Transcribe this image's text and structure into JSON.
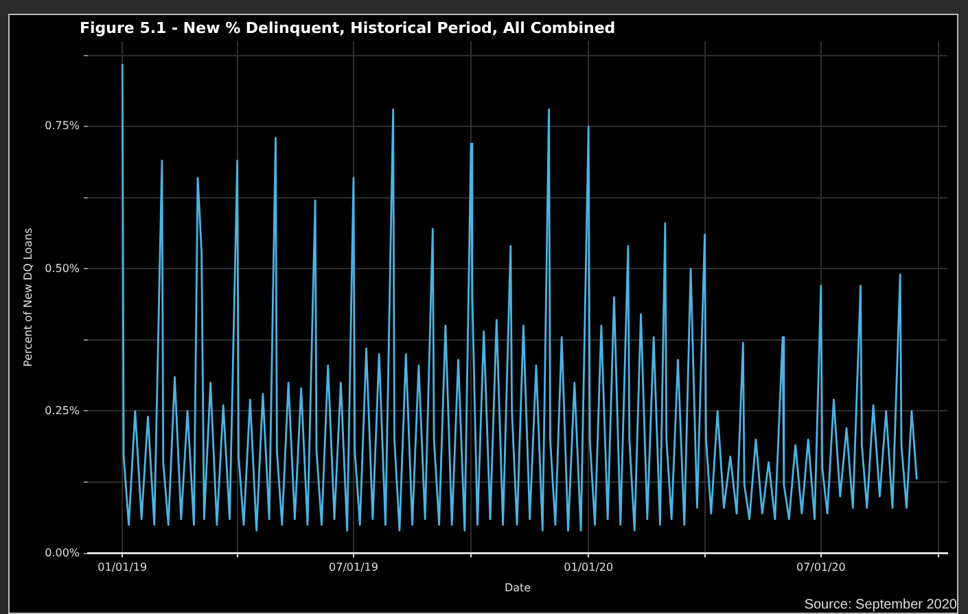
{
  "chart_data": {
    "type": "line",
    "title": "Figure 5.1 - New % Delinquent, Historical Period, All Combined",
    "xlabel": "Date",
    "ylabel": "Percent of New DQ Loans",
    "annotations": [
      "Source: September 2020"
    ],
    "x": [
      "2019-01-01",
      "2019-01-02",
      "2019-01-06",
      "2019-01-11",
      "2019-01-16",
      "2019-01-21",
      "2019-01-26",
      "2019-02-01",
      "2019-02-02",
      "2019-02-06",
      "2019-02-11",
      "2019-02-16",
      "2019-02-21",
      "2019-02-26",
      "2019-03-01",
      "2019-03-04",
      "2019-03-06",
      "2019-03-11",
      "2019-03-16",
      "2019-03-21",
      "2019-03-26",
      "2019-04-01",
      "2019-04-02",
      "2019-04-06",
      "2019-04-11",
      "2019-04-16",
      "2019-04-21",
      "2019-04-26",
      "2019-05-01",
      "2019-05-02",
      "2019-05-06",
      "2019-05-11",
      "2019-05-16",
      "2019-05-21",
      "2019-05-26",
      "2019-06-01",
      "2019-06-02",
      "2019-06-06",
      "2019-06-11",
      "2019-06-16",
      "2019-06-21",
      "2019-06-26",
      "2019-07-01",
      "2019-07-02",
      "2019-07-06",
      "2019-07-11",
      "2019-07-16",
      "2019-07-21",
      "2019-07-26",
      "2019-08-01",
      "2019-08-02",
      "2019-08-06",
      "2019-08-11",
      "2019-08-16",
      "2019-08-21",
      "2019-08-26",
      "2019-09-01",
      "2019-09-02",
      "2019-09-06",
      "2019-09-11",
      "2019-09-16",
      "2019-09-21",
      "2019-09-26",
      "2019-10-01",
      "2019-10-02",
      "2019-10-06",
      "2019-10-11",
      "2019-10-16",
      "2019-10-21",
      "2019-10-26",
      "2019-11-01",
      "2019-11-02",
      "2019-11-06",
      "2019-11-11",
      "2019-11-16",
      "2019-11-21",
      "2019-11-26",
      "2019-12-01",
      "2019-12-02",
      "2019-12-06",
      "2019-12-11",
      "2019-12-16",
      "2019-12-21",
      "2019-12-26",
      "2020-01-01",
      "2020-01-02",
      "2020-01-06",
      "2020-01-11",
      "2020-01-16",
      "2020-01-21",
      "2020-01-26",
      "2020-02-01",
      "2020-02-02",
      "2020-02-06",
      "2020-02-11",
      "2020-02-16",
      "2020-02-21",
      "2020-02-26",
      "2020-03-01",
      "2020-03-02",
      "2020-03-06",
      "2020-03-11",
      "2020-03-16",
      "2020-03-21",
      "2020-03-26",
      "2020-04-01",
      "2020-04-02",
      "2020-04-06",
      "2020-04-11",
      "2020-04-16",
      "2020-04-21",
      "2020-04-26",
      "2020-05-01",
      "2020-05-02",
      "2020-05-06",
      "2020-05-11",
      "2020-05-16",
      "2020-05-21",
      "2020-05-26",
      "2020-06-01",
      "2020-06-02",
      "2020-06-06",
      "2020-06-11",
      "2020-06-16",
      "2020-06-21",
      "2020-06-26",
      "2020-07-01",
      "2020-07-02",
      "2020-07-06",
      "2020-07-11",
      "2020-07-16",
      "2020-07-21",
      "2020-07-26",
      "2020-08-01",
      "2020-08-02",
      "2020-08-06",
      "2020-08-11",
      "2020-08-16",
      "2020-08-21",
      "2020-08-26",
      "2020-09-01",
      "2020-09-02",
      "2020-09-06",
      "2020-09-10",
      "2020-09-14"
    ],
    "series": [
      {
        "color": "#4db3e2",
        "values": [
          0.86,
          0.17,
          0.05,
          0.25,
          0.06,
          0.24,
          0.05,
          0.69,
          0.16,
          0.05,
          0.31,
          0.06,
          0.25,
          0.05,
          0.66,
          0.53,
          0.06,
          0.3,
          0.05,
          0.26,
          0.06,
          0.69,
          0.17,
          0.05,
          0.27,
          0.04,
          0.28,
          0.06,
          0.73,
          0.18,
          0.05,
          0.3,
          0.06,
          0.29,
          0.05,
          0.62,
          0.18,
          0.05,
          0.33,
          0.06,
          0.3,
          0.04,
          0.66,
          0.18,
          0.05,
          0.36,
          0.06,
          0.35,
          0.05,
          0.78,
          0.2,
          0.04,
          0.35,
          0.05,
          0.33,
          0.06,
          0.57,
          0.2,
          0.05,
          0.4,
          0.05,
          0.34,
          0.04,
          0.72,
          0.45,
          0.05,
          0.39,
          0.06,
          0.41,
          0.05,
          0.54,
          0.25,
          0.05,
          0.4,
          0.06,
          0.33,
          0.04,
          0.78,
          0.2,
          0.05,
          0.38,
          0.04,
          0.3,
          0.04,
          0.75,
          0.2,
          0.05,
          0.4,
          0.06,
          0.45,
          0.05,
          0.54,
          0.2,
          0.04,
          0.42,
          0.06,
          0.38,
          0.05,
          0.58,
          0.2,
          0.06,
          0.34,
          0.05,
          0.5,
          0.08,
          0.56,
          0.2,
          0.07,
          0.25,
          0.08,
          0.17,
          0.07,
          0.37,
          0.12,
          0.06,
          0.2,
          0.07,
          0.16,
          0.06,
          0.38,
          0.12,
          0.06,
          0.19,
          0.07,
          0.2,
          0.06,
          0.47,
          0.15,
          0.07,
          0.27,
          0.1,
          0.22,
          0.08,
          0.47,
          0.19,
          0.08,
          0.26,
          0.1,
          0.25,
          0.08,
          0.49,
          0.19,
          0.08,
          0.25,
          0.13
        ]
      }
    ],
    "xlim": [
      "2018-12-05",
      "2020-10-08"
    ],
    "xticks": [
      {
        "value": "2019-01-01",
        "label": "01/01/19"
      },
      {
        "value": "2019-04-01",
        "label": null
      },
      {
        "value": "2019-07-01",
        "label": "07/01/19"
      },
      {
        "value": "2019-10-01",
        "label": null
      },
      {
        "value": "2020-01-01",
        "label": "01/01/20"
      },
      {
        "value": "2020-04-01",
        "label": null
      },
      {
        "value": "2020-07-01",
        "label": "07/01/20"
      },
      {
        "value": "2020-10-01",
        "label": null
      }
    ],
    "ylim": [
      0,
      0.9
    ],
    "yticks": [
      {
        "value": 0,
        "label": "0.00%"
      },
      {
        "value": 0.125,
        "label": null
      },
      {
        "value": 0.25,
        "label": "0.25%"
      },
      {
        "value": 0.375,
        "label": null
      },
      {
        "value": 0.5,
        "label": "0.50%"
      },
      {
        "value": 0.625,
        "label": null
      },
      {
        "value": 0.75,
        "label": "0.75%"
      },
      {
        "value": 0.875,
        "label": null
      }
    ],
    "grid": true,
    "legend": false,
    "marker": "none",
    "line_style": "solid"
  }
}
